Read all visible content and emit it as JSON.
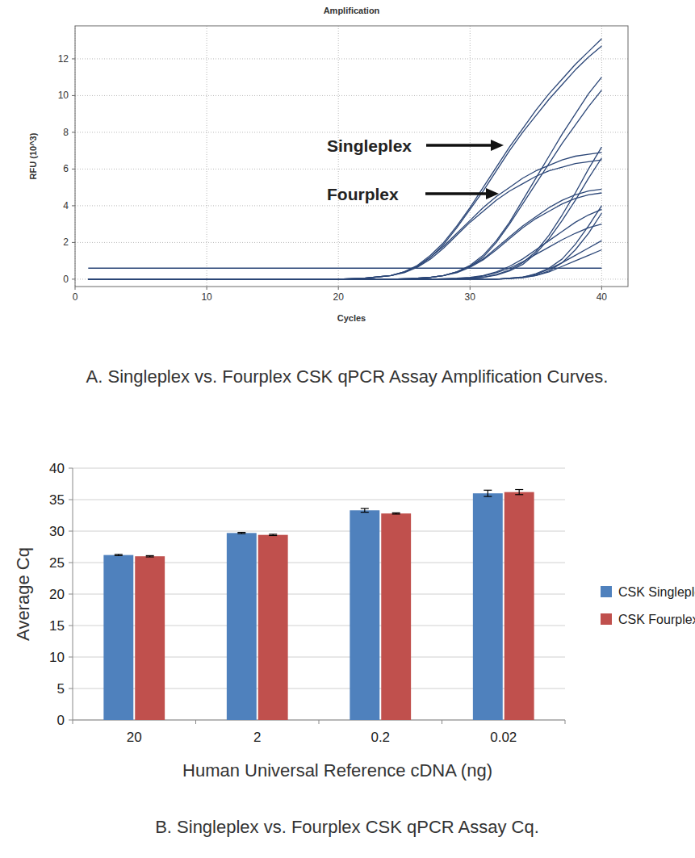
{
  "chart_data": [
    {
      "type": "line",
      "title": "Amplification",
      "x_label": "Cycles",
      "y_label": "RFU (10^3)",
      "caption": "A. Singleplex vs. Fourplex CSK qPCR Assay Amplification Curves.",
      "annotations": [
        "Singleplex",
        "Fourplex"
      ],
      "xlim": [
        0,
        42
      ],
      "ylim": [
        -0.4,
        13.8
      ],
      "xticks": [
        0,
        10,
        20,
        30,
        40
      ],
      "yticks": [
        0,
        2,
        4,
        6,
        8,
        10,
        12
      ],
      "grid": true,
      "color": "#2b4677",
      "x": [
        1,
        10,
        20,
        22,
        24,
        25,
        26,
        27,
        28,
        29,
        30,
        31,
        32,
        33,
        34,
        35,
        36,
        37,
        38,
        39,
        40
      ],
      "series": [
        {
          "values": [
            0,
            0,
            0,
            0.05,
            0.2,
            0.4,
            0.75,
            1.3,
            2.0,
            2.9,
            3.9,
            5.0,
            6.1,
            7.2,
            8.2,
            9.2,
            10.1,
            10.9,
            11.7,
            12.4,
            13.1
          ]
        },
        {
          "values": [
            0,
            0,
            0,
            0.05,
            0.2,
            0.4,
            0.7,
            1.2,
            1.9,
            2.8,
            3.8,
            4.8,
            5.9,
            7.0,
            8.0,
            8.9,
            9.8,
            10.6,
            11.4,
            12.1,
            12.7
          ]
        },
        {
          "values": [
            0,
            0,
            0,
            0.05,
            0.2,
            0.4,
            0.7,
            1.2,
            1.8,
            2.5,
            3.2,
            3.9,
            4.5,
            5.0,
            5.5,
            5.9,
            6.2,
            6.5,
            6.7,
            6.8,
            6.9
          ]
        },
        {
          "values": [
            0,
            0,
            0,
            0.05,
            0.2,
            0.35,
            0.65,
            1.1,
            1.7,
            2.4,
            3.1,
            3.7,
            4.3,
            4.8,
            5.2,
            5.6,
            5.9,
            6.1,
            6.3,
            6.4,
            6.5
          ]
        },
        {
          "values": [
            0,
            0,
            0,
            0,
            0,
            0.02,
            0.05,
            0.1,
            0.2,
            0.4,
            0.75,
            1.3,
            2.1,
            3.1,
            4.3,
            5.5,
            6.7,
            7.9,
            9.0,
            10.1,
            11.0
          ]
        },
        {
          "values": [
            0,
            0,
            0,
            0,
            0,
            0.02,
            0.05,
            0.1,
            0.2,
            0.4,
            0.7,
            1.2,
            2.0,
            3.0,
            4.1,
            5.2,
            6.3,
            7.4,
            8.4,
            9.4,
            10.3
          ]
        },
        {
          "values": [
            0,
            0,
            0,
            0,
            0,
            0.02,
            0.05,
            0.1,
            0.2,
            0.4,
            0.7,
            1.1,
            1.7,
            2.3,
            2.9,
            3.4,
            3.9,
            4.3,
            4.6,
            4.8,
            4.9
          ]
        },
        {
          "values": [
            0,
            0,
            0,
            0,
            0,
            0.02,
            0.05,
            0.1,
            0.2,
            0.35,
            0.65,
            1.05,
            1.6,
            2.2,
            2.8,
            3.3,
            3.7,
            4.1,
            4.4,
            4.6,
            4.7
          ]
        },
        {
          "values": [
            0,
            0,
            0,
            0,
            0,
            0,
            0,
            0,
            0.01,
            0.02,
            0.05,
            0.1,
            0.25,
            0.5,
            0.9,
            1.5,
            2.4,
            3.5,
            4.7,
            6.0,
            7.2
          ]
        },
        {
          "values": [
            0,
            0,
            0,
            0,
            0,
            0,
            0,
            0,
            0.01,
            0.02,
            0.05,
            0.1,
            0.22,
            0.45,
            0.8,
            1.4,
            2.2,
            3.2,
            4.3,
            5.5,
            6.6
          ]
        },
        {
          "values": [
            0,
            0,
            0,
            0,
            0,
            0,
            0,
            0,
            0.02,
            0.05,
            0.1,
            0.2,
            0.4,
            0.7,
            1.1,
            1.6,
            2.1,
            2.6,
            3.1,
            3.5,
            3.8
          ]
        },
        {
          "values": [
            0,
            0,
            0,
            0,
            0,
            0,
            0,
            0,
            0.02,
            0.04,
            0.08,
            0.17,
            0.35,
            0.6,
            0.95,
            1.35,
            1.75,
            2.15,
            2.5,
            2.8,
            3.0
          ]
        },
        {
          "values": [
            0,
            0,
            0,
            0,
            0,
            0,
            0,
            0,
            0,
            0,
            0,
            0,
            0,
            0.05,
            0.1,
            0.3,
            0.6,
            1.1,
            1.9,
            2.9,
            4.0
          ]
        },
        {
          "values": [
            0,
            0,
            0,
            0,
            0,
            0,
            0,
            0,
            0,
            0,
            0,
            0,
            0,
            0.03,
            0.08,
            0.2,
            0.45,
            0.9,
            1.6,
            2.5,
            3.6
          ]
        },
        {
          "values": [
            0,
            0,
            0,
            0,
            0,
            0,
            0,
            0,
            0,
            0,
            0,
            0,
            0,
            0.05,
            0.12,
            0.25,
            0.55,
            0.9,
            1.3,
            1.7,
            2.1
          ]
        },
        {
          "values": [
            0,
            0,
            0,
            0,
            0,
            0,
            0,
            0,
            0,
            0,
            0,
            0,
            0,
            0.04,
            0.1,
            0.2,
            0.4,
            0.7,
            1.0,
            1.3,
            1.6
          ]
        },
        {
          "values": [
            0.6,
            0.6,
            0.6,
            0.6,
            0.6,
            0.6,
            0.6,
            0.6,
            0.6,
            0.6,
            0.6,
            0.6,
            0.6,
            0.6,
            0.6,
            0.6,
            0.6,
            0.6,
            0.6,
            0.6,
            0.6
          ]
        }
      ]
    },
    {
      "type": "bar",
      "x_label": "Human Universal Reference cDNA (ng)",
      "y_label": "Average Cq",
      "caption": "B. Singleplex vs. Fourplex CSK qPCR Assay Cq.",
      "categories": [
        "20",
        "2",
        "0.2",
        "0.02"
      ],
      "ylim": [
        0,
        40
      ],
      "yticks": [
        0,
        5,
        10,
        15,
        20,
        25,
        30,
        35,
        40
      ],
      "grid": true,
      "legend": "right",
      "series": [
        {
          "name": "CSK Singleplex",
          "color": "#4f81bd",
          "values": [
            26.2,
            29.7,
            33.3,
            36.0
          ],
          "errors": [
            0.1,
            0.1,
            0.3,
            0.5
          ]
        },
        {
          "name": "CSK Fourplex",
          "color": "#c0504d",
          "values": [
            26.0,
            29.4,
            32.8,
            36.2
          ],
          "errors": [
            0.1,
            0.1,
            0.1,
            0.4
          ]
        }
      ]
    }
  ]
}
